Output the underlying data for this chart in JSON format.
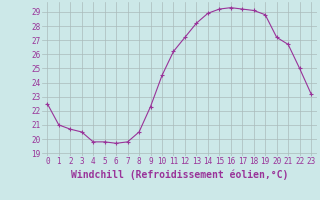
{
  "x": [
    0,
    1,
    2,
    3,
    4,
    5,
    6,
    7,
    8,
    9,
    10,
    11,
    12,
    13,
    14,
    15,
    16,
    17,
    18,
    19,
    20,
    21,
    22,
    23
  ],
  "y": [
    22.5,
    21.0,
    20.7,
    20.5,
    19.8,
    19.8,
    19.7,
    19.8,
    20.5,
    22.3,
    24.5,
    26.2,
    27.2,
    28.2,
    28.9,
    29.2,
    29.3,
    29.2,
    29.1,
    28.8,
    27.2,
    26.7,
    25.0,
    23.2
  ],
  "line_color": "#993399",
  "marker": "+",
  "marker_size": 3,
  "background_color": "#cce8e8",
  "grid_color": "#aabbbb",
  "xlabel": "Windchill (Refroidissement éolien,°C)",
  "xlabel_color": "#993399",
  "ylim_min": 18.8,
  "ylim_max": 29.7,
  "yticks": [
    19,
    20,
    21,
    22,
    23,
    24,
    25,
    26,
    27,
    28,
    29
  ],
  "xticks": [
    0,
    1,
    2,
    3,
    4,
    5,
    6,
    7,
    8,
    9,
    10,
    11,
    12,
    13,
    14,
    15,
    16,
    17,
    18,
    19,
    20,
    21,
    22,
    23
  ],
  "tick_label_fontsize": 5.5,
  "xlabel_fontsize": 7,
  "line_width": 0.8
}
